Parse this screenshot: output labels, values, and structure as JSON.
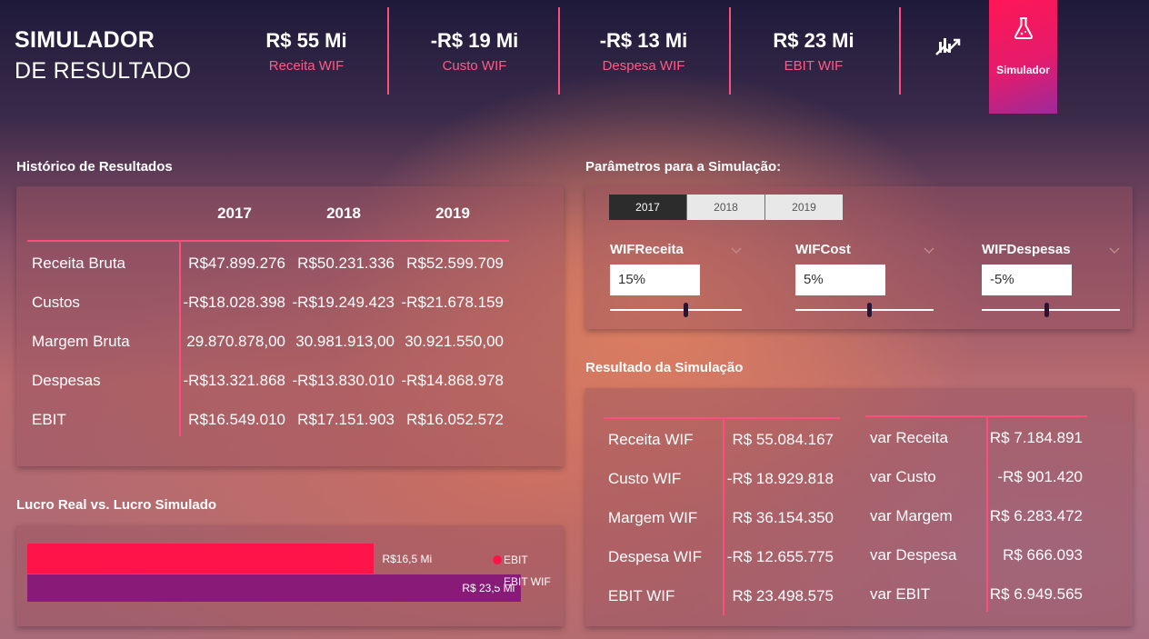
{
  "header": {
    "title_line1": "SIMULADOR",
    "title_line2": "DE RESULTADO",
    "kpis": [
      {
        "value": "R$ 55 Mi",
        "label": "Receita WIF"
      },
      {
        "value": "-R$ 19 Mi",
        "label": "Custo WIF"
      },
      {
        "value": "-R$ 13 Mi",
        "label": "Despesa WIF"
      },
      {
        "value": "R$ 23 Mi",
        "label": "EBIT WIF"
      }
    ],
    "nav_icon": "line-chart-icon",
    "simulator_button": {
      "label": "Simulador",
      "icon": "flask-icon"
    }
  },
  "history": {
    "title": "Histórico de Resultados",
    "years": [
      "2017",
      "2018",
      "2019"
    ],
    "rows": [
      {
        "label": "Receita Bruta",
        "values": [
          "R$47.899.276",
          "R$50.231.336",
          "R$52.599.709"
        ]
      },
      {
        "label": "Custos",
        "values": [
          "-R$18.028.398",
          "-R$19.249.423",
          "-R$21.678.159"
        ]
      },
      {
        "label": "Margem Bruta",
        "values": [
          "29.870.878,00",
          "30.981.913,00",
          "30.921.550,00"
        ]
      },
      {
        "label": "Despesas",
        "values": [
          "-R$13.321.868",
          "-R$13.830.010",
          "-R$14.868.978"
        ]
      },
      {
        "label": "EBIT",
        "values": [
          "R$16.549.010",
          "R$17.151.903",
          "R$16.052.572"
        ]
      }
    ]
  },
  "parameters": {
    "title": "Parâmetros para a Simulação:",
    "tabs": [
      {
        "label": "2017",
        "active": true
      },
      {
        "label": "2018",
        "active": false
      },
      {
        "label": "2019",
        "active": false
      }
    ],
    "fields": [
      {
        "label": "WIFReceita",
        "value": "15%",
        "slider_fraction": 0.57
      },
      {
        "label": "WIFCost",
        "value": "5%",
        "slider_fraction": 0.53
      },
      {
        "label": "WIFDespesas",
        "value": "-5%",
        "slider_fraction": 0.47
      }
    ]
  },
  "results": {
    "title": "Resultado da Simulação",
    "left": [
      {
        "label": "Receita WIF",
        "value": "R$ 55.084.167"
      },
      {
        "label": "Custo WIF",
        "value": "-R$ 18.929.818"
      },
      {
        "label": "Margem WIF",
        "value": "R$ 36.154.350"
      },
      {
        "label": "Despesa WIF",
        "value": "-R$ 12.655.775"
      },
      {
        "label": "EBIT WIF",
        "value": "R$ 23.498.575"
      }
    ],
    "right": [
      {
        "label": "var Receita",
        "value": "R$ 7.184.891"
      },
      {
        "label": "var Custo",
        "value": "-R$ 901.420"
      },
      {
        "label": "var Margem",
        "value": "R$ 6.283.472"
      },
      {
        "label": "var Despesa",
        "value": "R$ 666.093"
      },
      {
        "label": "var EBIT",
        "value": "R$ 6.949.565"
      }
    ]
  },
  "profit_chart": {
    "title": "Lucro Real vs. Lucro Simulado",
    "chart_data": {
      "type": "bar",
      "orientation": "horizontal",
      "series": [
        {
          "name": "EBIT",
          "value": 16.5,
          "label": "R$16,5 Mi",
          "color": "#ff1449"
        },
        {
          "name": "EBIT WIF",
          "value": 23.5,
          "label": "R$ 23,5 Mi",
          "color": "#8a1a78"
        }
      ],
      "xlim": [
        0,
        25.0
      ],
      "legend": "right"
    }
  },
  "colors": {
    "accent": "#ff4d7d",
    "kpi_label": "#ff5a86"
  }
}
